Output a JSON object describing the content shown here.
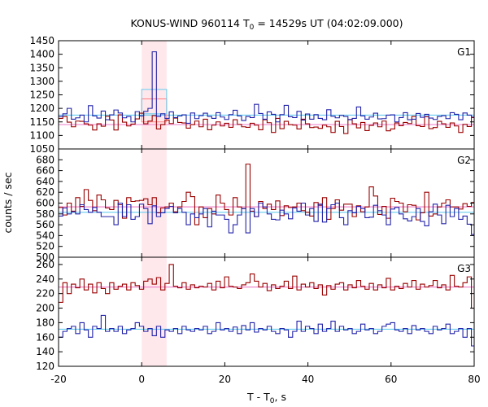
{
  "chart_data": {
    "type": "line",
    "title": "KONUS-WIND 960114 T",
    "title_sub": "0",
    "title_rest": " = 14529s UT (04:02:09.000)",
    "xlabel": "T - T",
    "xlabel_sub": "0",
    "xlabel_rest": ", s",
    "ylabel": "counts / sec",
    "xlim": [
      -20,
      80
    ],
    "xticks": [
      "-20",
      "0",
      "20",
      "40",
      "60",
      "80"
    ],
    "highlight_interval": [
      0,
      6
    ],
    "colors": {
      "red_series": "#990000",
      "blue_series": "#2222aa",
      "red_background": "#ee88cc",
      "blue_background": "#66ccee",
      "highlight_band": "#ffe8ec",
      "red_box": "#ff8080",
      "blue_box": "#66ccee"
    },
    "panels": [
      {
        "label": "G1",
        "ylim": [
          1050,
          1450
        ],
        "yticks": [
          "1450",
          "1400",
          "1350",
          "1300",
          "1250",
          "1200",
          "1150",
          "1100",
          "1050"
        ],
        "bin_start": -20,
        "bin_width": 1.024,
        "red_background": 1140,
        "blue_background": 1175,
        "red_box": {
          "x": [
            0,
            6
          ],
          "y": [
            1150,
            1235
          ]
        },
        "blue_box": {
          "x": [
            0,
            6
          ],
          "y": [
            1180,
            1270
          ]
        },
        "series": [
          {
            "color_key": "red_series",
            "values": [
              1163,
              1170,
              1149,
              1132,
              1153,
              1152,
              1143,
              1138,
              1120,
              1143,
              1134,
              1171,
              1157,
              1120,
              1176,
              1149,
              1135,
              1142,
              1161,
              1182,
              1143,
              1153,
              1173,
              1124,
              1140,
              1157,
              1144,
              1164,
              1148,
              1146,
              1127,
              1140,
              1153,
              1132,
              1160,
              1121,
              1138,
              1150,
              1135,
              1145,
              1130,
              1158,
              1141,
              1132,
              1130,
              1145,
              1138,
              1121,
              1158,
              1147,
              1111,
              1163,
              1125,
              1152,
              1140,
              1138,
              1124,
              1160,
              1143,
              1129,
              1131,
              1126,
              1138,
              1132,
              1111,
              1152,
              1133,
              1107,
              1159,
              1143,
              1128,
              1148,
              1118,
              1137,
              1146,
              1132,
              1153,
              1117,
              1124,
              1146,
              1136,
              1148,
              1144,
              1170,
              1136,
              1133,
              1169,
              1125,
              1129,
              1152,
              1143,
              1130,
              1146,
              1135,
              1111,
              1141,
              1133,
              1166
            ]
          },
          {
            "color_key": "blue_series",
            "values": [
              1170,
              1180,
              1200,
              1160,
              1165,
              1175,
              1150,
              1210,
              1172,
              1164,
              1190,
              1158,
              1176,
              1194,
              1183,
              1165,
              1170,
              1150,
              1188,
              1172,
              1189,
              1200,
              1409,
              1170,
              1180,
              1163,
              1187,
              1166,
              1172,
              1176,
              1145,
              1183,
              1162,
              1173,
              1182,
              1170,
              1163,
              1184,
              1168,
              1159,
              1177,
              1193,
              1172,
              1155,
              1170,
              1166,
              1215,
              1181,
              1160,
              1187,
              1178,
              1150,
              1177,
              1211,
              1169,
              1166,
              1189,
              1157,
              1179,
              1160,
              1177,
              1163,
              1158,
              1195,
              1171,
              1165,
              1174,
              1170,
              1158,
              1163,
              1205,
              1172,
              1160,
              1168,
              1182,
              1161,
              1162,
              1175,
              1176,
              1150,
              1166,
              1184,
              1158,
              1160,
              1181,
              1167,
              1178,
              1164,
              1159,
              1170,
              1173,
              1162,
              1184,
              1178,
              1158,
              1183,
              1175,
              1168
            ]
          }
        ]
      },
      {
        "label": "G2",
        "ylim": [
          500,
          700
        ],
        "yticks": [
          "680",
          "660",
          "640",
          "620",
          "600",
          "580",
          "560",
          "540",
          "520",
          "500"
        ],
        "bin_start": -20,
        "bin_width": 1.024,
        "red_background": 593,
        "blue_background": 583,
        "series": [
          {
            "color_key": "red_series",
            "values": [
              592,
              578,
              600,
              585,
              610,
              594,
              625,
              605,
              586,
              615,
              606,
              591,
              588,
              605,
              597,
              572,
              610,
              603,
              604,
              605,
              608,
              597,
              610,
              582,
              591,
              593,
              600,
              584,
              593,
              603,
              620,
              612,
              560,
              593,
              573,
              590,
              580,
              615,
              600,
              588,
              578,
              610,
              593,
              590,
              672,
              585,
              575,
              603,
              590,
              598,
              588,
              604,
              577,
              595,
              592,
              593,
              600,
              586,
              583,
              576,
              601,
              596,
              610,
              570,
              590,
              606,
              587,
              598,
              598,
              575,
              595,
              584,
              593,
              630,
              613,
              579,
              594,
              572,
              609,
              603,
              600,
              584,
              597,
              596,
              569,
              582,
              620,
              576,
              580,
              593,
              600,
              606,
              593,
              593,
              589,
              599,
              594,
              601
            ]
          },
          {
            "color_key": "blue_series",
            "values": [
              576,
              591,
              580,
              584,
              580,
              597,
              588,
              583,
              592,
              583,
              575,
              575,
              575,
              560,
              600,
              575,
              597,
              570,
              575,
              598,
              590,
              562,
              595,
              575,
              582,
              590,
              594,
              582,
              590,
              583,
              560,
              580,
              573,
              580,
              590,
              556,
              585,
              578,
              578,
              570,
              545,
              560,
              578,
              590,
              545,
              590,
              575,
              600,
              593,
              580,
              570,
              569,
              587,
              580,
              571,
              591,
              585,
              600,
              578,
              590,
              566,
              598,
              565,
              590,
              597,
              600,
              573,
              560,
              586,
              582,
              594,
              590,
              573,
              574,
              596,
              586,
              578,
              560,
              589,
              592,
              580,
              571,
              567,
              575,
              590,
              566,
              558,
              584,
              598,
              578,
              562,
              596,
              575,
              590,
              570,
              576,
              561,
              542
            ]
          }
        ]
      },
      {
        "label": "G3",
        "ylim": [
          120,
          270
        ],
        "yticks": [
          "260",
          "240",
          "220",
          "200",
          "180",
          "160",
          "140",
          "120"
        ],
        "bin_start": -20,
        "bin_width": 1.024,
        "red_background": 229,
        "blue_background": 171,
        "series": [
          {
            "color_key": "red_series",
            "values": [
              208,
              235,
              220,
              233,
              228,
              240,
              225,
              233,
              221,
              235,
              227,
              220,
              235,
              226,
              230,
              233,
              225,
              235,
              231,
              226,
              237,
              240,
              233,
              242,
              225,
              234,
              260,
              230,
              228,
              235,
              226,
              232,
              228,
              230,
              229,
              234,
              225,
              237,
              228,
              243,
              230,
              229,
              227,
              232,
              235,
              247,
              237,
              229,
              234,
              224,
              232,
              227,
              230,
              237,
              227,
              244,
              225,
              233,
              229,
              235,
              227,
              232,
              218,
              231,
              226,
              233,
              235,
              225,
              232,
              228,
              238,
              230,
              226,
              234,
              225,
              232,
              228,
              241,
              225,
              230,
              227,
              234,
              229,
              238,
              226,
              233,
              229,
              231,
              238,
              228,
              232,
              225,
              245,
              230,
              229,
              235,
              243,
              200
            ]
          },
          {
            "color_key": "blue_series",
            "values": [
              160,
              168,
              172,
              175,
              165,
              180,
              170,
              160,
              175,
              172,
              190,
              168,
              172,
              168,
              175,
              165,
              170,
              172,
              180,
              175,
              168,
              172,
              162,
              175,
              160,
              170,
              168,
              172,
              165,
              175,
              170,
              168,
              172,
              170,
              175,
              165,
              168,
              180,
              170,
              172,
              168,
              174,
              165,
              176,
              170,
              180,
              167,
              172,
              170,
              175,
              168,
              165,
              172,
              170,
              160,
              168,
              182,
              168,
              175,
              172,
              165,
              178,
              168,
              172,
              182,
              168,
              175,
              170,
              172,
              165,
              168,
              178,
              170,
              172,
              165,
              168,
              175,
              178,
              180,
              170,
              168,
              172,
              165,
              176,
              170,
              172,
              168,
              165,
              175,
              170,
              172,
              178,
              165,
              168,
              172,
              160,
              172,
              148
            ]
          }
        ]
      }
    ]
  }
}
